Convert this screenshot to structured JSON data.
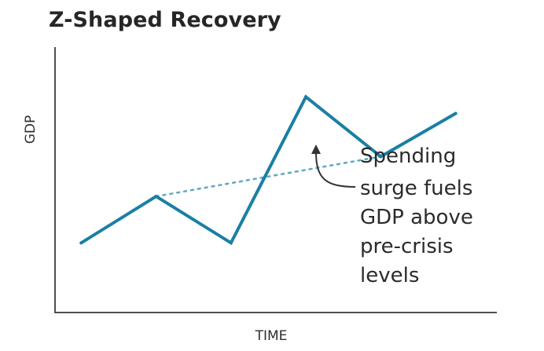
{
  "chart_data": {
    "type": "line",
    "title": "Z-Shaped Recovery",
    "xlabel": "TIME",
    "ylabel": "GDP",
    "x": [
      0,
      1,
      2,
      3,
      4,
      5
    ],
    "series": [
      {
        "values": [
          2.1,
          3.5,
          2.1,
          6.5,
          4.7,
          6.0
        ],
        "color": "#1b7fa3"
      }
    ],
    "trend": {
      "from": [
        1,
        3.5
      ],
      "to": [
        4,
        4.7
      ],
      "style": "dotted",
      "color": "#5fa8c3"
    },
    "xlim": [
      -0.35,
      5.55
    ],
    "ylim": [
      0,
      8
    ],
    "grid": false,
    "legend": "none",
    "annotation": {
      "lines": [
        "Spending",
        "surge fuels",
        "GDP above",
        "pre-crisis",
        "levels"
      ],
      "points_to": [
        3.56,
        4.3
      ]
    }
  },
  "colors": {
    "line": "#1b7fa3",
    "trend": "#5fa8c3",
    "axis": "#505050",
    "text": "#2b2b2b"
  }
}
